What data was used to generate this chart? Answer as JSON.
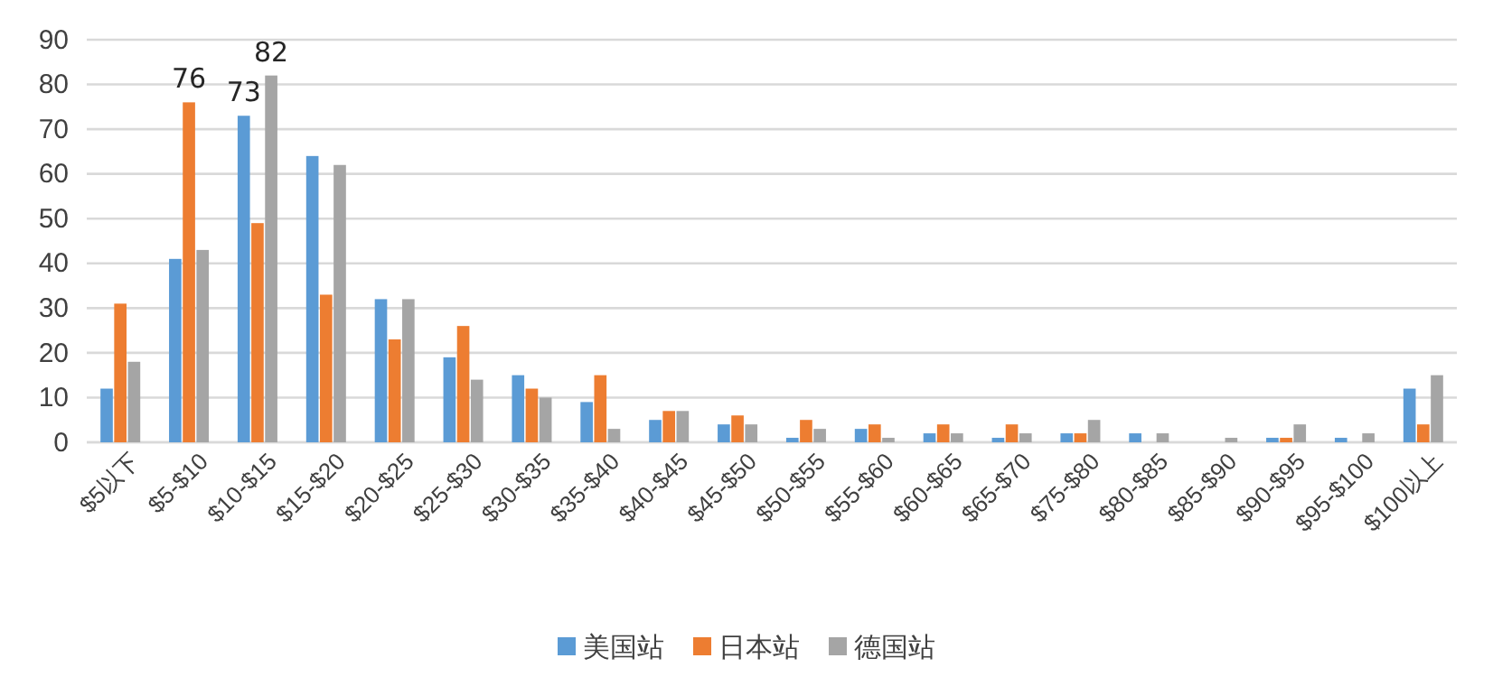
{
  "chart_data": {
    "type": "bar",
    "categories": [
      "$5以下",
      "$5-$10",
      "$10-$15",
      "$15-$20",
      "$20-$25",
      "$25-$30",
      "$30-$35",
      "$35-$40",
      "$40-$45",
      "$45-$50",
      "$50-$55",
      "$55-$60",
      "$60-$65",
      "$65-$70",
      "$75-$80",
      "$80-$85",
      "$85-$90",
      "$90-$95",
      "$95-$100",
      "$100以上"
    ],
    "series": [
      {
        "name": "美国站",
        "color": "#5b9bd5",
        "values": [
          12,
          41,
          73,
          64,
          32,
          19,
          15,
          9,
          5,
          4,
          1,
          3,
          2,
          1,
          2,
          2,
          0,
          1,
          1,
          12
        ],
        "value_labels": [
          null,
          null,
          "73",
          null,
          null,
          null,
          null,
          null,
          null,
          null,
          null,
          null,
          null,
          null,
          null,
          null,
          null,
          null,
          null,
          null
        ]
      },
      {
        "name": "日本站",
        "color": "#ed7d31",
        "values": [
          31,
          76,
          49,
          33,
          23,
          26,
          12,
          15,
          7,
          6,
          5,
          4,
          4,
          4,
          2,
          0,
          0,
          1,
          0,
          4
        ],
        "value_labels": [
          null,
          "76",
          null,
          null,
          null,
          null,
          null,
          null,
          null,
          null,
          null,
          null,
          null,
          null,
          null,
          null,
          null,
          null,
          null,
          null
        ]
      },
      {
        "name": "德国站",
        "color": "#a5a5a5",
        "values": [
          18,
          43,
          82,
          62,
          32,
          14,
          10,
          3,
          7,
          4,
          3,
          1,
          2,
          2,
          5,
          2,
          1,
          4,
          2,
          15
        ],
        "value_labels": [
          null,
          null,
          "82",
          null,
          null,
          null,
          null,
          null,
          null,
          null,
          null,
          null,
          null,
          null,
          null,
          null,
          null,
          null,
          null,
          null
        ]
      }
    ],
    "ylim": [
      0,
      90
    ],
    "yticks": [
      0,
      10,
      20,
      30,
      40,
      50,
      60,
      70,
      80,
      90
    ],
    "grid": "y",
    "legend": "bottom"
  }
}
